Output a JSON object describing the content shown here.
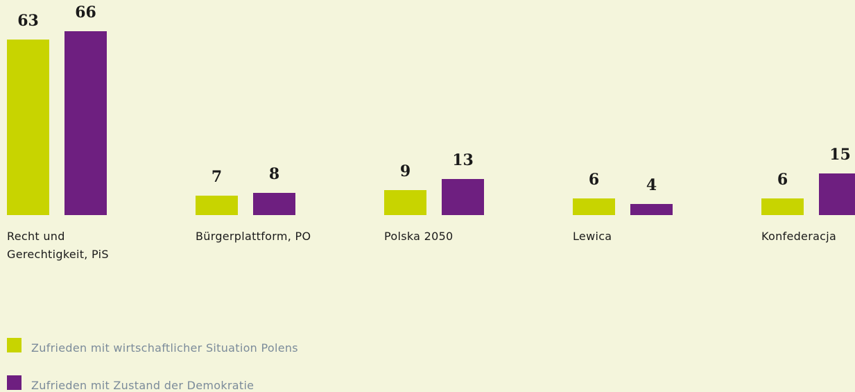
{
  "chart_data": {
    "type": "bar",
    "categories": [
      "Recht und Gerechtigkeit, PiS",
      "Bürgerplattform, PO",
      "Polska 2050",
      "Lewica",
      "Konfederacja"
    ],
    "series": [
      {
        "name": "Zufrieden mit wirtschaftlicher Situation Polens",
        "color": "#c8d400",
        "values": [
          63,
          7,
          9,
          6,
          6
        ]
      },
      {
        "name": "Zufrieden mit Zustand der Demokratie",
        "color": "#6e1f80",
        "values": [
          66,
          8,
          13,
          4,
          15
        ]
      }
    ],
    "legend": "bottom-left"
  }
}
